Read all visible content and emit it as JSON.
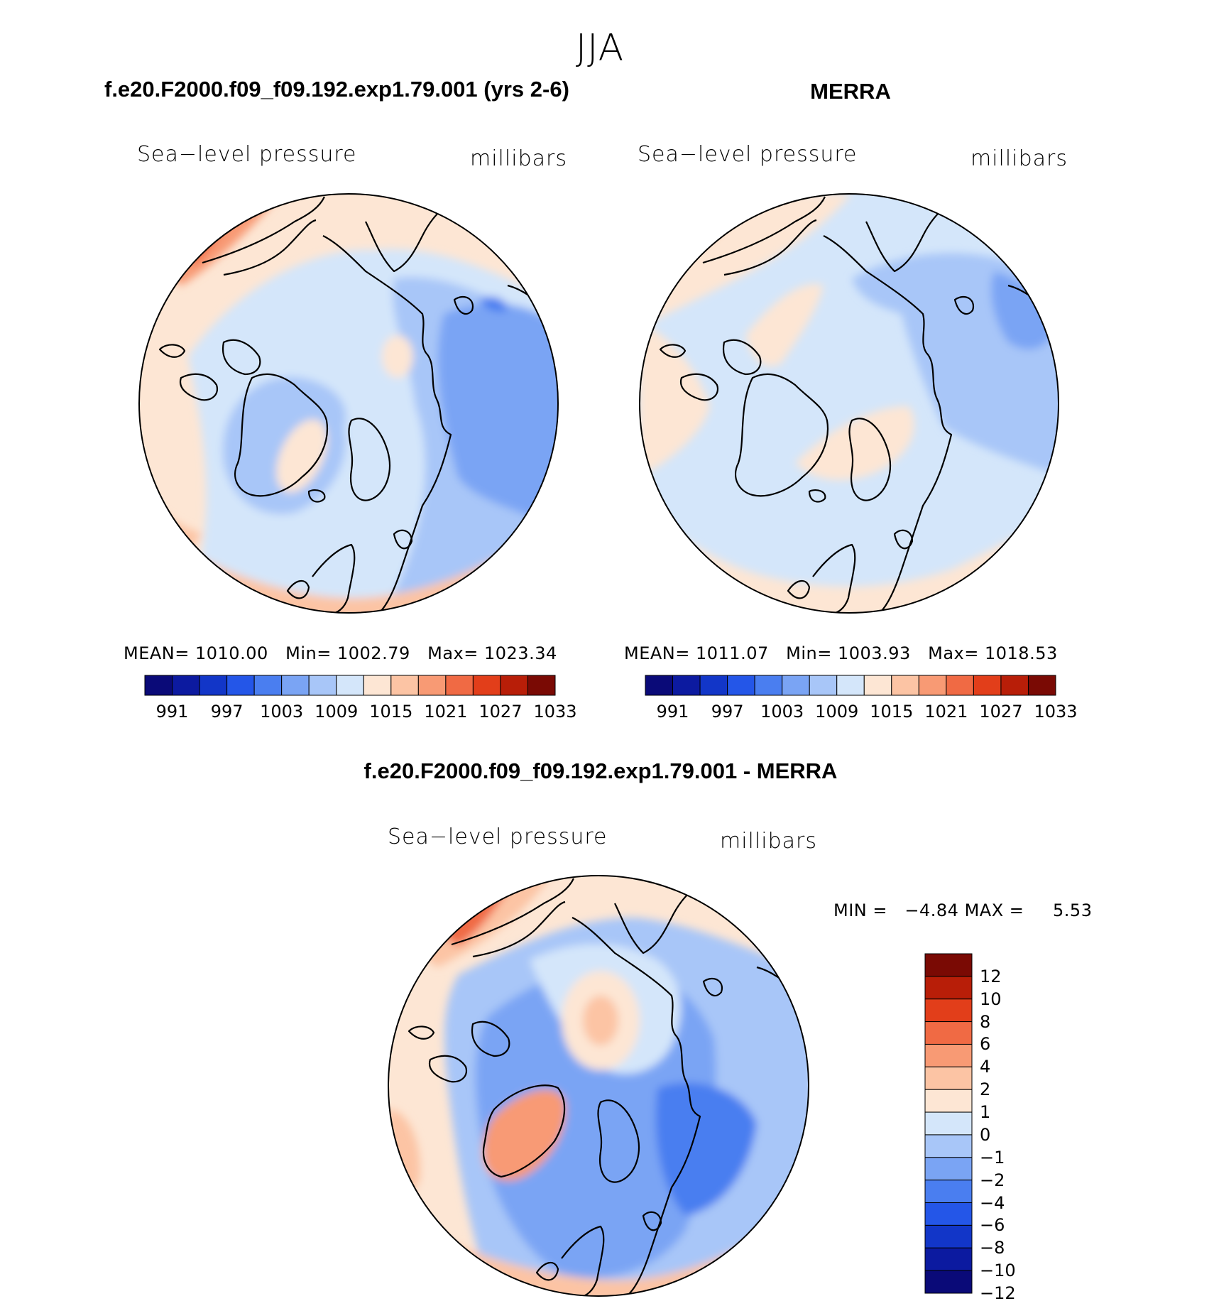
{
  "figure": {
    "title": "JJA"
  },
  "chart_data": [
    {
      "type": "heatmap",
      "panel": "model",
      "title": "f.e20.F2000.f09_f09.192.exp1.79.001 (yrs 2-6)",
      "variable": "Sea−level pressure",
      "units": "millibars",
      "projection": "north polar stereographic",
      "stats": {
        "mean_label": "MEAN=",
        "mean": "1010.00",
        "min_label": "Min=",
        "min": "1002.79",
        "max_label": "Max=",
        "max": "1023.34"
      },
      "contour_levels": [
        991,
        994,
        997,
        1000,
        1003,
        1006,
        1009,
        1012,
        1015,
        1018,
        1021,
        1024,
        1027,
        1030,
        1033
      ],
      "tick_labels": [
        "991",
        "997",
        "1003",
        "1009",
        "1015",
        "1021",
        "1027",
        "1033"
      ]
    },
    {
      "type": "heatmap",
      "panel": "obs",
      "title": "MERRA",
      "variable": "Sea−level pressure",
      "units": "millibars",
      "projection": "north polar stereographic",
      "stats": {
        "mean_label": "MEAN=",
        "mean": "1011.07",
        "min_label": "Min=",
        "min": "1003.93",
        "max_label": "Max=",
        "max": "1018.53"
      },
      "contour_levels": [
        991,
        994,
        997,
        1000,
        1003,
        1006,
        1009,
        1012,
        1015,
        1018,
        1021,
        1024,
        1027,
        1030,
        1033
      ],
      "tick_labels": [
        "991",
        "997",
        "1003",
        "1009",
        "1015",
        "1021",
        "1027",
        "1033"
      ]
    },
    {
      "type": "heatmap",
      "panel": "difference",
      "title": "f.e20.F2000.f09_f09.192.exp1.79.001 - MERRA",
      "variable": "Sea−level pressure",
      "units": "millibars",
      "projection": "north polar stereographic",
      "stats": {
        "min_label": "MIN =",
        "min": "−4.84",
        "max_label": "MAX =",
        "max": "5.53"
      },
      "contour_levels": [
        -12,
        -10,
        -8,
        -6,
        -4,
        -2,
        -1,
        0,
        1,
        2,
        4,
        6,
        8,
        10,
        12
      ],
      "tick_labels": [
        "12",
        "10",
        "8",
        "6",
        "4",
        "2",
        "1",
        "0",
        "−1",
        "−2",
        "−4",
        "−6",
        "−8",
        "−10",
        "−12"
      ]
    }
  ],
  "colorbar_colors": [
    "#0a0a78",
    "#0c1aa0",
    "#1236c8",
    "#2456e8",
    "#4a7ef0",
    "#7aa4f4",
    "#a8c6f8",
    "#d4e6fa",
    "#fde6d4",
    "#fcc4a4",
    "#f89a74",
    "#f06a44",
    "#e23e1a",
    "#b81e08",
    "#7a0a04"
  ]
}
